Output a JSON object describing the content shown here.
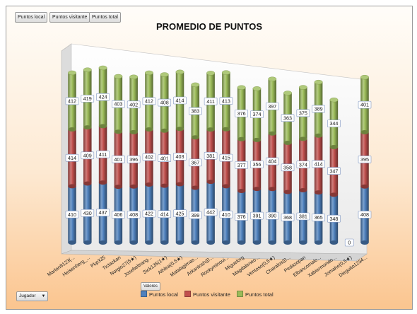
{
  "field_buttons": [
    "Puntos local",
    "Puntos visitante",
    "Puntos total"
  ],
  "axis_filter": {
    "label": "Jugador",
    "icon": "dropdown-arrow-icon"
  },
  "values_button": "Valores",
  "colors": {
    "local": "#4f81bd",
    "visitante": "#c0504d",
    "total": "#9bbb59"
  },
  "chart_data": {
    "type": "bar",
    "subtype": "stacked-3d-cylinder",
    "title": "PROMEDIO DE PUNTOS",
    "xlabel": "",
    "ylabel": "",
    "grid": false,
    "legend_position": "bottom",
    "categories": [
      "Marlon9123(...",
      "Heisenberg_...",
      "Pkp335",
      "Tictackan",
      "Norgio27(5★)",
      "Josebeltrang...",
      "Sick135(1★)",
      "Athlea(0,5★)",
      "Matalagirnas...",
      "Arkantosh(0...",
      "Rockyminoui...",
      "Miguelorg",
      "Magdaleneo...",
      "Ventoso(0,5★)",
      "Charalos(0...",
      "Pedazopan",
      "Elbancomalo...",
      "Xabiermondo...",
      "Jomahe(0,5★)",
      "Dieguito1234..."
    ],
    "series": [
      {
        "name": "Puntos local",
        "values": [
          410,
          430,
          437,
          406,
          408,
          422,
          414,
          425,
          399,
          442,
          410,
          376,
          391,
          390,
          368,
          381,
          365,
          348,
          0,
          408
        ]
      },
      {
        "name": "Puntos visitante",
        "values": [
          414,
          409,
          411,
          401,
          396,
          402,
          401,
          403,
          367,
          381,
          415,
          377,
          356,
          404,
          358,
          374,
          414,
          347,
          0,
          395
        ]
      },
      {
        "name": "Puntos total",
        "values": [
          412,
          419,
          424,
          403,
          402,
          412,
          408,
          414,
          383,
          411,
          413,
          376,
          374,
          397,
          363,
          375,
          389,
          344,
          0,
          401
        ]
      }
    ]
  }
}
